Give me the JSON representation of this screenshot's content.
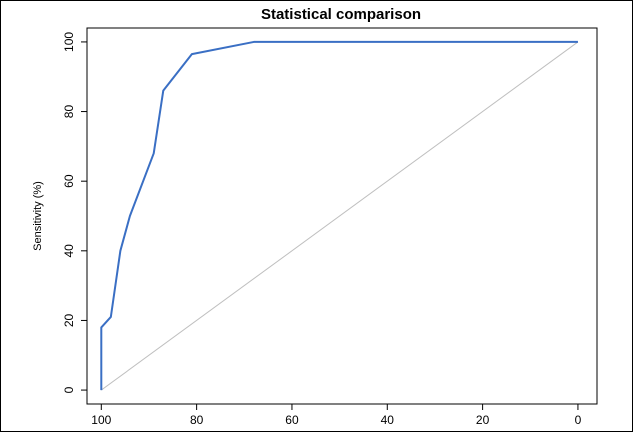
{
  "chart_data": {
    "type": "line",
    "title": "Statistical comparison",
    "xlabel": "",
    "ylabel": "Sensitivity (%)",
    "x_axis_reversed": true,
    "xlim": [
      103,
      -4
    ],
    "ylim": [
      -4,
      104
    ],
    "x_ticks": [
      100,
      80,
      60,
      40,
      20,
      0
    ],
    "y_ticks": [
      0,
      20,
      40,
      60,
      80,
      100
    ],
    "grid": false,
    "legend": "none",
    "series": [
      {
        "color": "#3a6fc4",
        "points": [
          [
            100,
            0
          ],
          [
            100,
            18
          ],
          [
            98,
            21
          ],
          [
            96,
            40
          ],
          [
            94,
            50
          ],
          [
            89,
            68
          ],
          [
            87,
            86
          ],
          [
            81,
            96.5
          ],
          [
            68,
            100
          ],
          [
            0,
            100
          ]
        ]
      }
    ],
    "reference_line": {
      "from": [
        100,
        0
      ],
      "to": [
        0,
        100
      ],
      "color": "#bfbfbf"
    }
  }
}
